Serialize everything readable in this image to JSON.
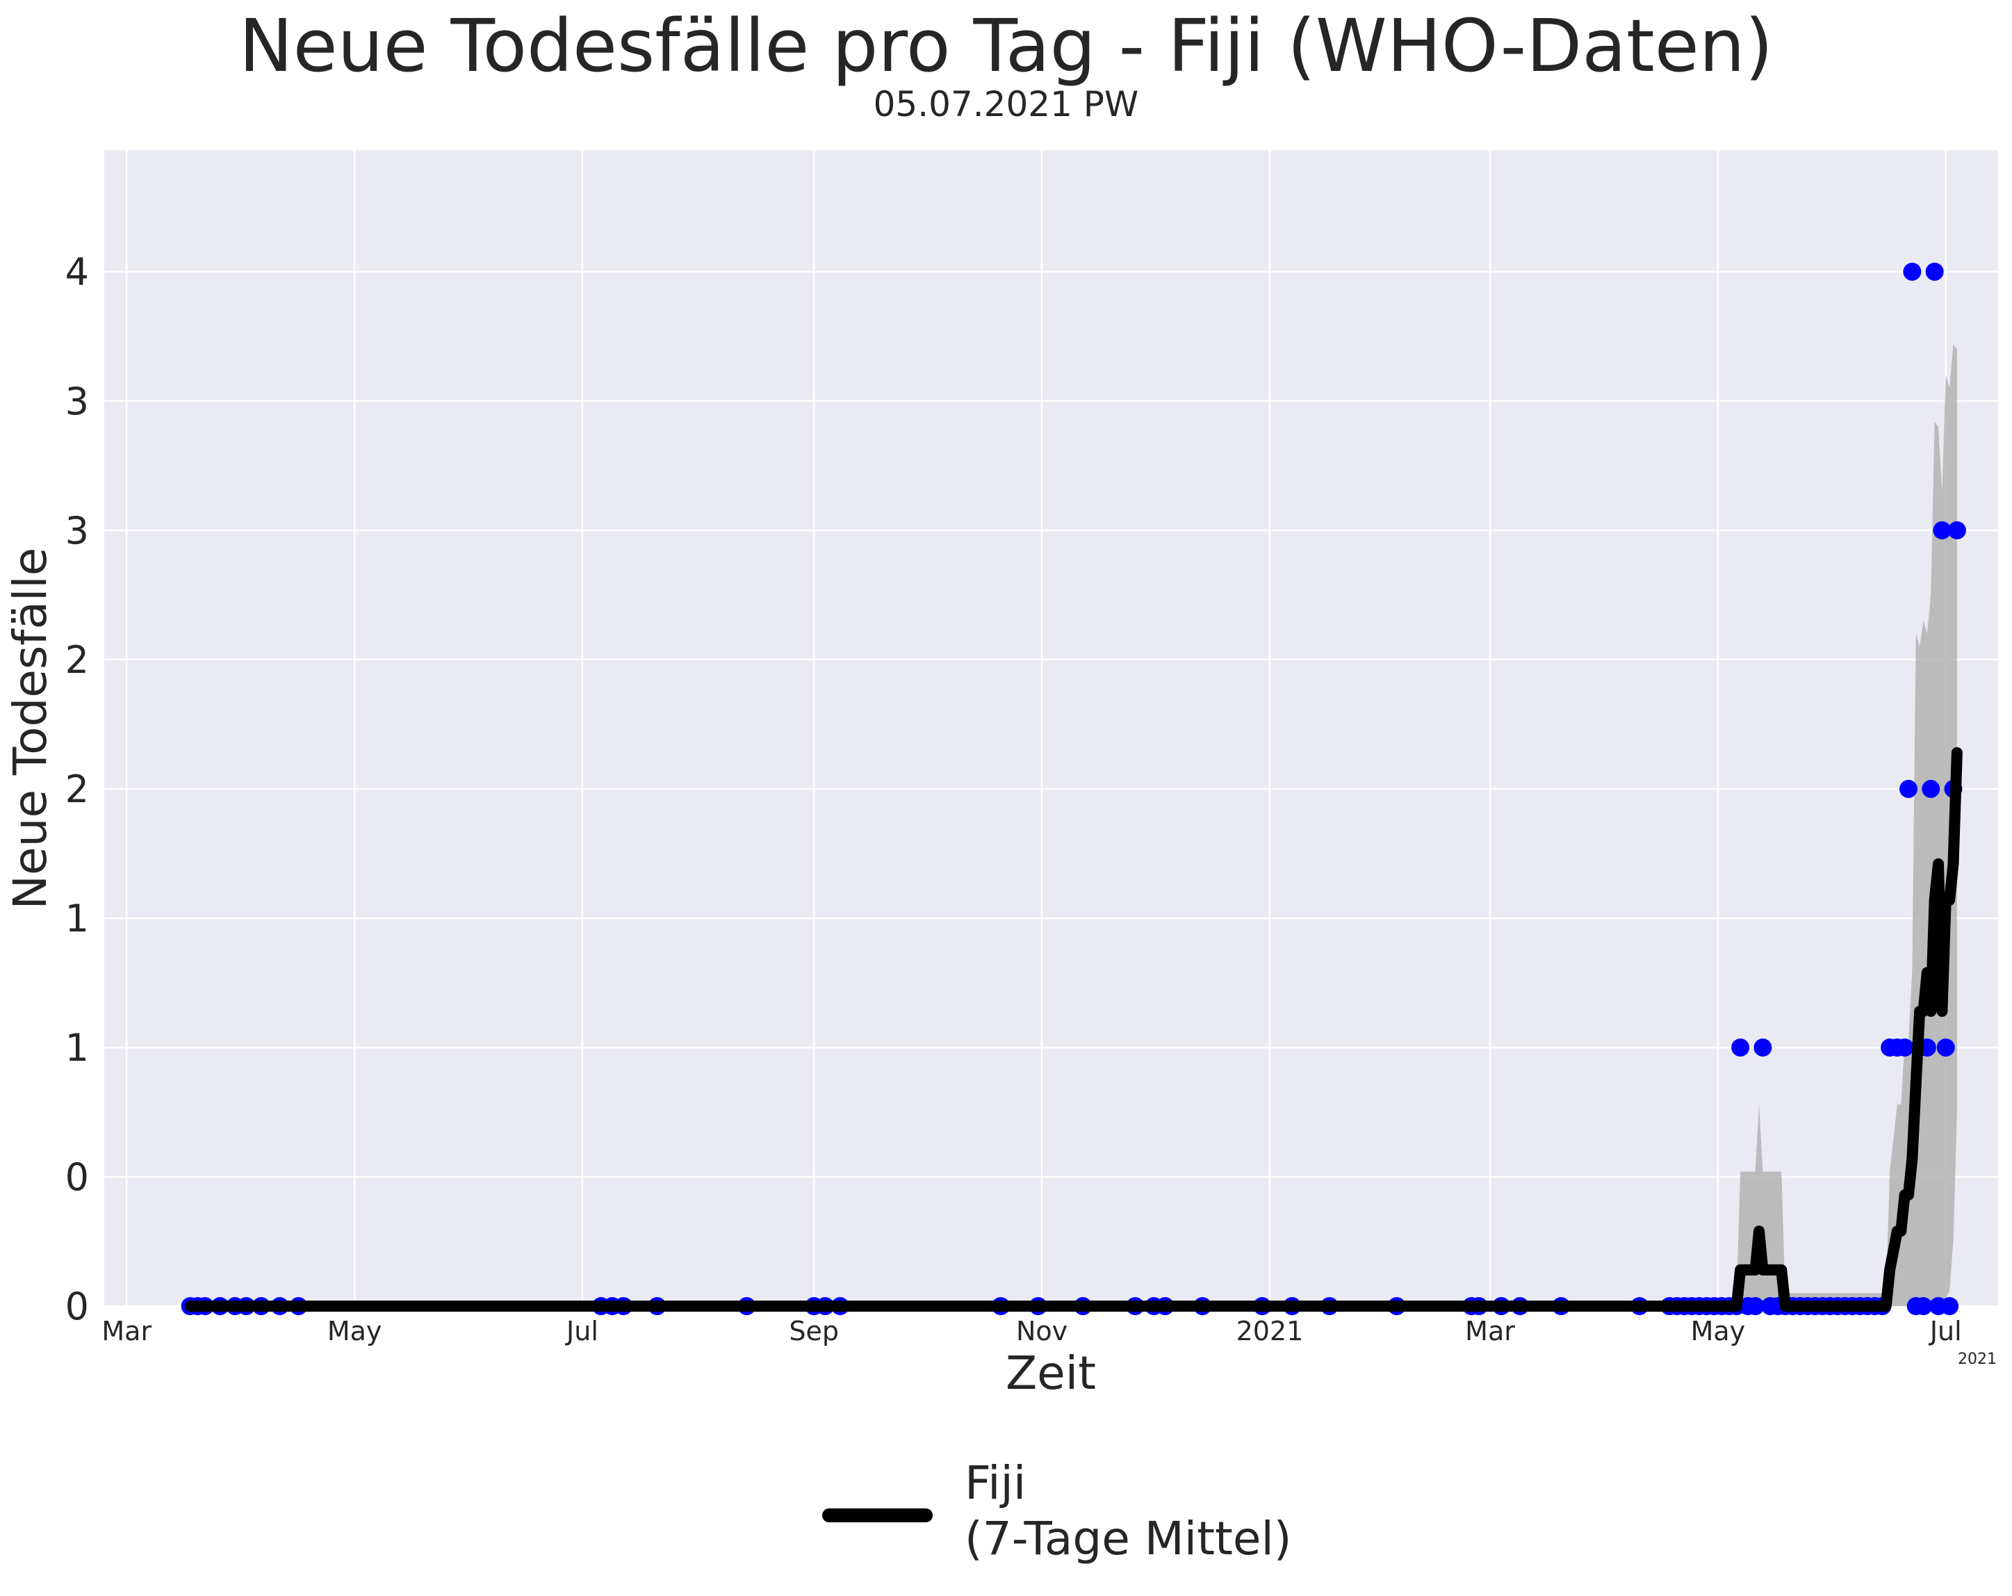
{
  "chart_data": {
    "type": "line",
    "title": "Neue Todesfälle pro Tag - Fiji (WHO-Daten)",
    "subtitle": "05.07.2021 PW",
    "xlabel": "Zeit",
    "ylabel": "Neue Todesfälle",
    "x_offset_label": "2021",
    "x_range": [
      "2020-02-24",
      "2021-07-15"
    ],
    "y_range": [
      0,
      4.47
    ],
    "grid": true,
    "legend_placement": "bottom-center",
    "x_ticks": [
      {
        "date": "2020-03-01",
        "label": "Mar"
      },
      {
        "date": "2020-05-01",
        "label": "May"
      },
      {
        "date": "2020-07-01",
        "label": "Jul"
      },
      {
        "date": "2020-09-01",
        "label": "Sep"
      },
      {
        "date": "2020-11-01",
        "label": "Nov"
      },
      {
        "date": "2021-01-01",
        "label": "2021"
      },
      {
        "date": "2021-03-01",
        "label": "Mar"
      },
      {
        "date": "2021-05-01",
        "label": "May"
      },
      {
        "date": "2021-07-01",
        "label": "Jul"
      }
    ],
    "y_ticks": [
      {
        "value": 0,
        "label": "0"
      },
      {
        "value": 0.5,
        "label": "0"
      },
      {
        "value": 1,
        "label": "1"
      },
      {
        "value": 1.5,
        "label": "1"
      },
      {
        "value": 2,
        "label": "2"
      },
      {
        "value": 2.5,
        "label": "2"
      },
      {
        "value": 3,
        "label": "3"
      },
      {
        "value": 3.5,
        "label": "3"
      },
      {
        "value": 4,
        "label": "4"
      }
    ],
    "series": [
      {
        "name": "Fiji\n(7-Tage Mittel)",
        "kind": "line",
        "color": "#000000",
        "points": [
          [
            "2020-03-18",
            0
          ],
          [
            "2021-05-06",
            0
          ],
          [
            "2021-05-07",
            0.14
          ],
          [
            "2021-05-11",
            0.14
          ],
          [
            "2021-05-12",
            0.29
          ],
          [
            "2021-05-13",
            0.14
          ],
          [
            "2021-05-18",
            0.14
          ],
          [
            "2021-05-19",
            0
          ],
          [
            "2021-06-15",
            0
          ],
          [
            "2021-06-16",
            0.14
          ],
          [
            "2021-06-18",
            0.29
          ],
          [
            "2021-06-19",
            0.29
          ],
          [
            "2021-06-20",
            0.43
          ],
          [
            "2021-06-21",
            0.43
          ],
          [
            "2021-06-22",
            0.57
          ],
          [
            "2021-06-23",
            0.86
          ],
          [
            "2021-06-24",
            1.14
          ],
          [
            "2021-06-25",
            1.14
          ],
          [
            "2021-06-26",
            1.29
          ],
          [
            "2021-06-27",
            1.14
          ],
          [
            "2021-06-28",
            1.57
          ],
          [
            "2021-06-29",
            1.71
          ],
          [
            "2021-06-30",
            1.14
          ],
          [
            "2021-07-01",
            1.57
          ],
          [
            "2021-07-02",
            1.57
          ],
          [
            "2021-07-03",
            1.71
          ],
          [
            "2021-07-04",
            2.14
          ]
        ]
      },
      {
        "kind": "band",
        "color": "#b3b3b3",
        "points": [
          [
            "2021-05-06",
            0,
            0.05
          ],
          [
            "2021-05-07",
            0,
            0.52
          ],
          [
            "2021-05-11",
            0,
            0.52
          ],
          [
            "2021-05-12",
            0,
            0.78
          ],
          [
            "2021-05-13",
            0,
            0.52
          ],
          [
            "2021-05-18",
            0,
            0.52
          ],
          [
            "2021-05-19",
            0,
            0.05
          ],
          [
            "2021-06-15",
            0,
            0.05
          ],
          [
            "2021-06-16",
            0,
            0.52
          ],
          [
            "2021-06-18",
            0,
            0.78
          ],
          [
            "2021-06-19",
            0,
            0.78
          ],
          [
            "2021-06-20",
            0,
            1.02
          ],
          [
            "2021-06-21",
            0,
            1.02
          ],
          [
            "2021-06-22",
            0,
            1.3
          ],
          [
            "2021-06-23",
            0,
            2.6
          ],
          [
            "2021-06-24",
            0,
            2.55
          ],
          [
            "2021-06-25",
            0,
            2.65
          ],
          [
            "2021-06-26",
            0,
            2.6
          ],
          [
            "2021-06-27",
            0,
            2.75
          ],
          [
            "2021-06-28",
            0.01,
            3.42
          ],
          [
            "2021-06-29",
            0.03,
            3.4
          ],
          [
            "2021-06-30",
            0.01,
            3.15
          ],
          [
            "2021-07-01",
            0.03,
            3.6
          ],
          [
            "2021-07-02",
            0.06,
            3.55
          ],
          [
            "2021-07-03",
            0.25,
            3.72
          ],
          [
            "2021-07-04",
            0.75,
            3.7
          ]
        ]
      },
      {
        "kind": "scatter",
        "color": "#0000ff",
        "points": [
          [
            "2020-03-18",
            0
          ],
          [
            "2020-03-20",
            0
          ],
          [
            "2020-03-22",
            0
          ],
          [
            "2020-03-26",
            0
          ],
          [
            "2020-03-30",
            0
          ],
          [
            "2020-04-02",
            0
          ],
          [
            "2020-04-06",
            0
          ],
          [
            "2020-04-11",
            0
          ],
          [
            "2020-04-16",
            0
          ],
          [
            "2020-07-06",
            0
          ],
          [
            "2020-07-09",
            0
          ],
          [
            "2020-07-12",
            0
          ],
          [
            "2020-07-21",
            0
          ],
          [
            "2020-08-14",
            0
          ],
          [
            "2020-09-01",
            0
          ],
          [
            "2020-09-04",
            0
          ],
          [
            "2020-09-08",
            0
          ],
          [
            "2020-10-21",
            0
          ],
          [
            "2020-10-31",
            0
          ],
          [
            "2020-11-12",
            0
          ],
          [
            "2020-11-26",
            0
          ],
          [
            "2020-12-01",
            0
          ],
          [
            "2020-12-04",
            0
          ],
          [
            "2020-12-14",
            0
          ],
          [
            "2020-12-30",
            0
          ],
          [
            "2021-01-07",
            0
          ],
          [
            "2021-01-17",
            0
          ],
          [
            "2021-02-04",
            0
          ],
          [
            "2021-02-24",
            0
          ],
          [
            "2021-02-26",
            0
          ],
          [
            "2021-03-04",
            0
          ],
          [
            "2021-03-09",
            0
          ],
          [
            "2021-03-20",
            0
          ],
          [
            "2021-04-10",
            0
          ],
          [
            "2021-04-18",
            0
          ],
          [
            "2021-04-20",
            0
          ],
          [
            "2021-04-22",
            0
          ],
          [
            "2021-04-24",
            0
          ],
          [
            "2021-04-26",
            0
          ],
          [
            "2021-04-28",
            0
          ],
          [
            "2021-04-30",
            0
          ],
          [
            "2021-05-02",
            0
          ],
          [
            "2021-05-04",
            0
          ],
          [
            "2021-05-06",
            0
          ],
          [
            "2021-05-07",
            1
          ],
          [
            "2021-05-09",
            0
          ],
          [
            "2021-05-11",
            0
          ],
          [
            "2021-05-13",
            1
          ],
          [
            "2021-05-15",
            0
          ],
          [
            "2021-05-17",
            0
          ],
          [
            "2021-05-19",
            0
          ],
          [
            "2021-05-21",
            0
          ],
          [
            "2021-05-23",
            0
          ],
          [
            "2021-05-25",
            0
          ],
          [
            "2021-05-27",
            0
          ],
          [
            "2021-05-29",
            0
          ],
          [
            "2021-05-31",
            0
          ],
          [
            "2021-06-02",
            0
          ],
          [
            "2021-06-04",
            0
          ],
          [
            "2021-06-06",
            0
          ],
          [
            "2021-06-08",
            0
          ],
          [
            "2021-06-10",
            0
          ],
          [
            "2021-06-12",
            0
          ],
          [
            "2021-06-14",
            0
          ],
          [
            "2021-06-16",
            1
          ],
          [
            "2021-06-18",
            1
          ],
          [
            "2021-06-20",
            1
          ],
          [
            "2021-06-21",
            2
          ],
          [
            "2021-06-22",
            4
          ],
          [
            "2021-06-23",
            0
          ],
          [
            "2021-06-24",
            1
          ],
          [
            "2021-06-25",
            0
          ],
          [
            "2021-06-26",
            1
          ],
          [
            "2021-06-27",
            2
          ],
          [
            "2021-06-28",
            4
          ],
          [
            "2021-06-29",
            0
          ],
          [
            "2021-06-30",
            3
          ],
          [
            "2021-07-01",
            1
          ],
          [
            "2021-07-02",
            0
          ],
          [
            "2021-07-03",
            2
          ],
          [
            "2021-07-04",
            3
          ]
        ]
      }
    ]
  }
}
